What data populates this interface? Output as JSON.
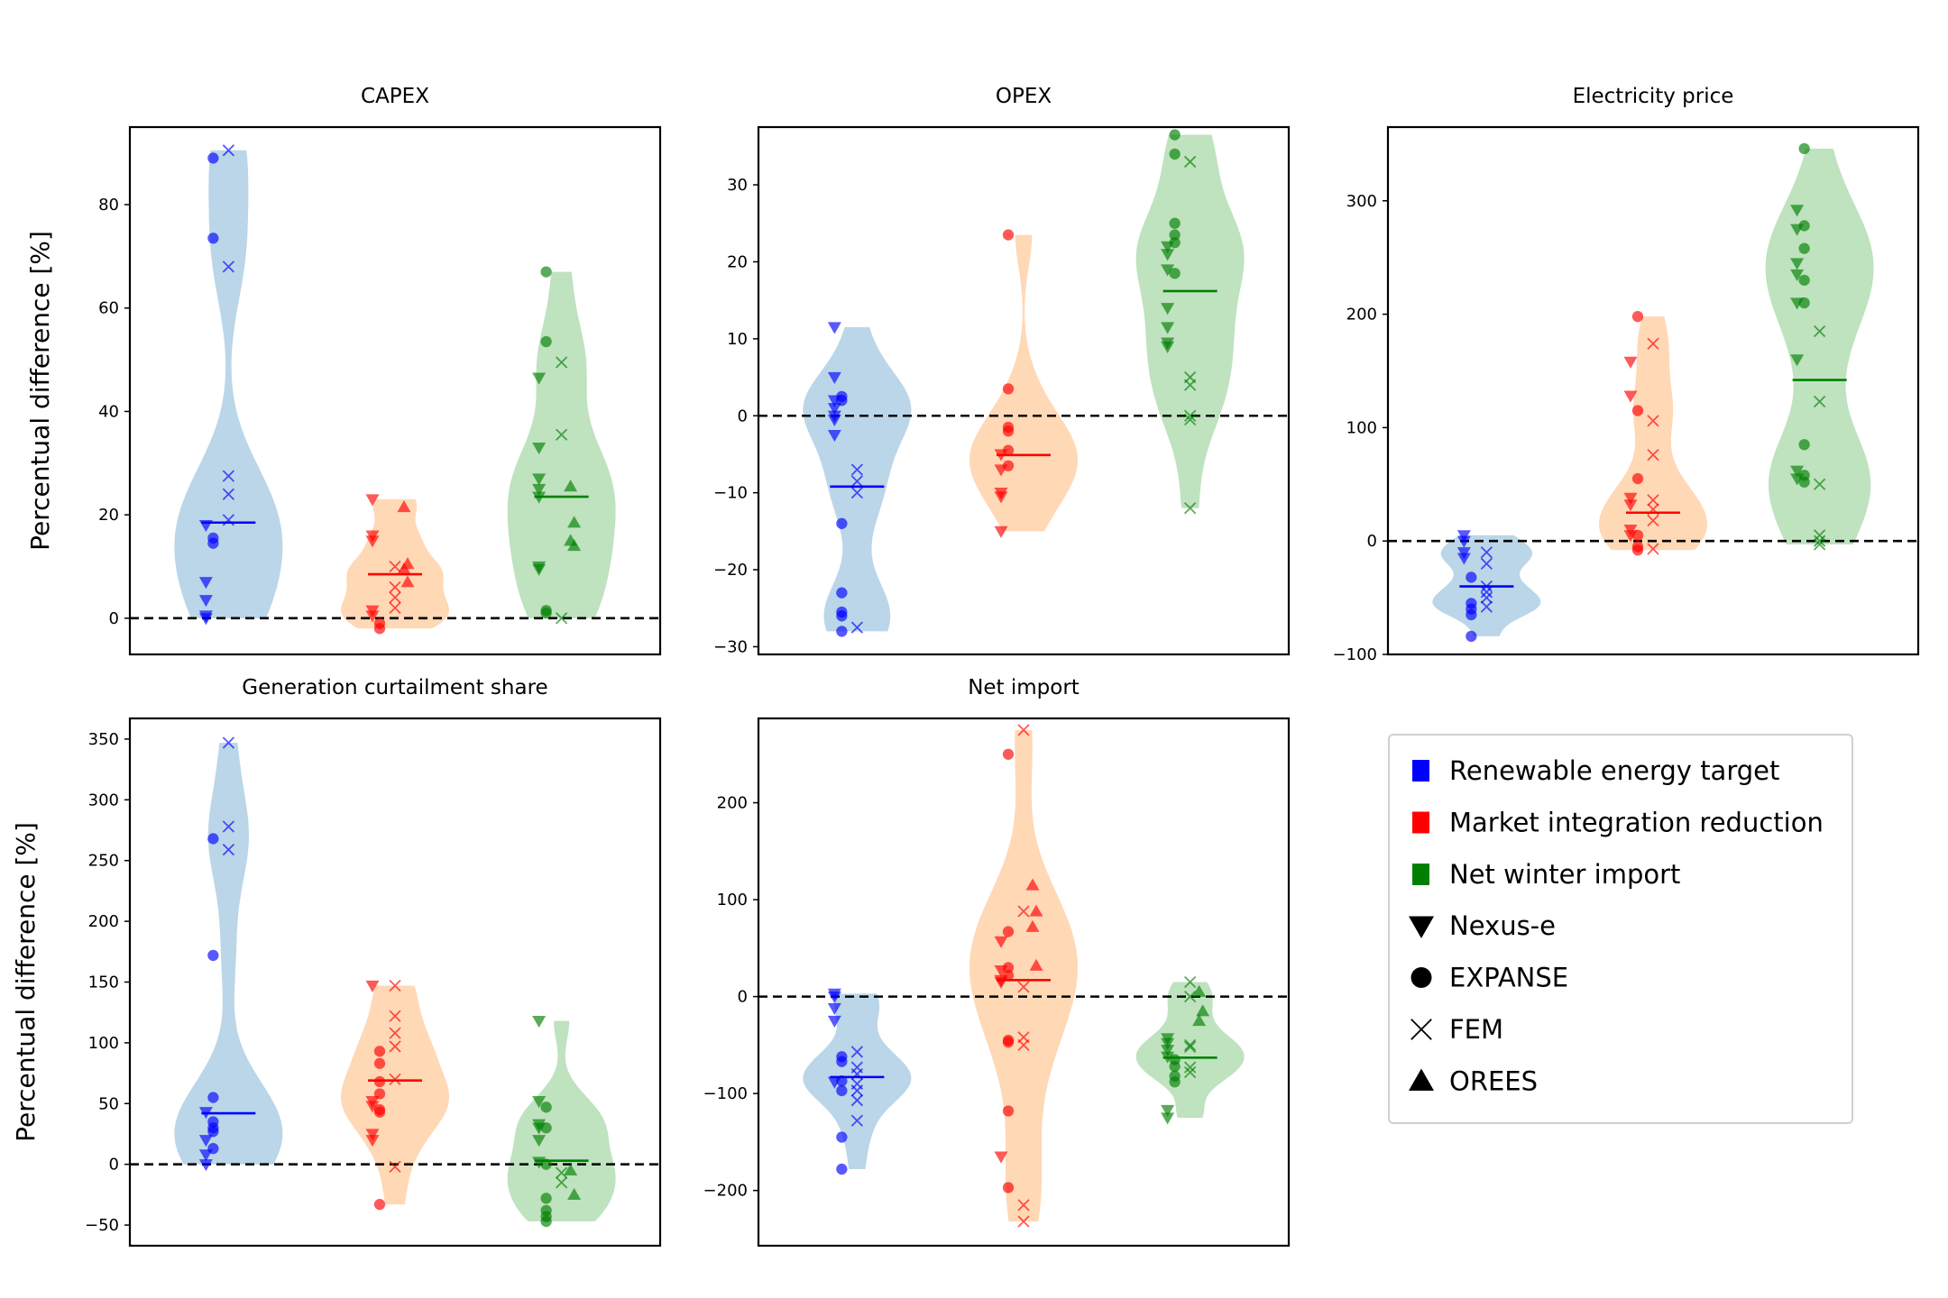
{
  "figure": {
    "ylabel": "Percentual difference [%]",
    "groups": [
      {
        "key": "ret",
        "name": "Renewable energy target",
        "color": "#0000ff",
        "fill": "#1f77b4"
      },
      {
        "key": "mir",
        "name": "Market integration reduction",
        "color": "#ff0000",
        "fill": "#ff7f0e"
      },
      {
        "key": "nwi",
        "name": "Net winter import",
        "color": "#008000",
        "fill": "#2ca02c"
      }
    ],
    "models": [
      {
        "key": "nexus",
        "name": "Nexus-e",
        "marker": "triangle-down"
      },
      {
        "key": "expanse",
        "name": "EXPANSE",
        "marker": "circle"
      },
      {
        "key": "fem",
        "name": "FEM",
        "marker": "x"
      },
      {
        "key": "orees",
        "name": "OREES",
        "marker": "triangle-up"
      }
    ]
  },
  "chart_data": [
    {
      "type": "violin",
      "title": "CAPEX",
      "ylim": [
        -7,
        95
      ],
      "yticks": [
        0,
        20,
        40,
        60,
        80
      ],
      "ylabel": "Percentual difference [%]",
      "series": [
        {
          "name": "Renewable energy target",
          "median": 18.5,
          "points": {
            "nexus": [
              18,
              7,
              3.5,
              0.5,
              0
            ],
            "expanse": [
              89,
              73.5,
              15.5,
              14.5
            ],
            "fem": [
              90.5,
              68,
              27.5,
              24,
              19
            ],
            "orees": []
          }
        },
        {
          "name": "Market integration reduction",
          "median": 8.5,
          "points": {
            "nexus": [
              23,
              16,
              15,
              1.5,
              0.5
            ],
            "expanse": [
              -1,
              -2
            ],
            "fem": [
              10,
              6,
              4,
              2
            ],
            "orees": [
              21.5,
              10.5,
              9.5,
              7
            ]
          }
        },
        {
          "name": "Net winter import",
          "median": 23.5,
          "points": {
            "nexus": [
              46.5,
              33,
              27,
              25,
              23.5,
              10,
              9.5
            ],
            "expanse": [
              67,
              53.5,
              1.5,
              1
            ],
            "fem": [
              49.5,
              35.5,
              0
            ],
            "orees": [
              25.5,
              18.5,
              15,
              14
            ]
          }
        }
      ]
    },
    {
      "type": "violin",
      "title": "OPEX",
      "ylim": [
        -31,
        37.5
      ],
      "yticks": [
        -30,
        -20,
        -10,
        0,
        10,
        20,
        30
      ],
      "series": [
        {
          "name": "Renewable energy target",
          "median": -9.2,
          "points": {
            "nexus": [
              11.5,
              5,
              2,
              1,
              0,
              -0.5,
              -2.5
            ],
            "expanse": [
              2.5,
              2,
              -14,
              -23,
              -25.5,
              -26,
              -28
            ],
            "fem": [
              -7,
              -8.5,
              -10,
              -27.5
            ],
            "orees": []
          }
        },
        {
          "name": "Market integration reduction",
          "median": -5.1,
          "points": {
            "nexus": [
              -5,
              -7,
              -10,
              -10.5,
              -15
            ],
            "expanse": [
              23.5,
              3.5,
              -1.5,
              -2,
              -4.5,
              -6.5
            ],
            "fem": [],
            "orees": []
          }
        },
        {
          "name": "Net winter import",
          "median": 16.2,
          "points": {
            "nexus": [
              22,
              21,
              19,
              14,
              11.5,
              9.5,
              9
            ],
            "expanse": [
              36.5,
              34,
              25,
              23.5,
              22.5,
              18.5
            ],
            "fem": [
              33,
              5,
              4,
              0,
              -0.5,
              -12
            ],
            "orees": []
          }
        }
      ]
    },
    {
      "type": "violin",
      "title": "Electricity price",
      "ylim": [
        -100,
        365
      ],
      "yticks": [
        -100,
        0,
        100,
        200,
        300
      ],
      "series": [
        {
          "name": "Renewable energy target",
          "median": -40,
          "points": {
            "nexus": [
              5,
              0,
              -10,
              -15
            ],
            "expanse": [
              -32,
              -55,
              -60,
              -65,
              -84
            ],
            "fem": [
              -10,
              -20,
              -40,
              -45,
              -50,
              -58
            ],
            "orees": []
          }
        },
        {
          "name": "Market integration reduction",
          "median": 25,
          "points": {
            "nexus": [
              158,
              128,
              38,
              32,
              10,
              5
            ],
            "expanse": [
              198,
              115,
              55,
              5,
              -5,
              -8
            ],
            "fem": [
              174,
              106,
              76,
              36,
              28,
              18,
              -7
            ],
            "orees": []
          }
        },
        {
          "name": "Net winter import",
          "median": 142,
          "points": {
            "nexus": [
              292,
              275,
              245,
              235,
              210,
              160,
              62,
              55
            ],
            "expanse": [
              346,
              278,
              258,
              230,
              210,
              85,
              58,
              52
            ],
            "fem": [
              185,
              123,
              50,
              5,
              0,
              -3
            ],
            "orees": []
          }
        }
      ]
    },
    {
      "type": "violin",
      "title": "Generation curtailment share",
      "ylim": [
        -67,
        367
      ],
      "yticks": [
        -50,
        0,
        50,
        100,
        150,
        200,
        250,
        300,
        350
      ],
      "ylabel": "Percentual difference [%]",
      "series": [
        {
          "name": "Renewable energy target",
          "median": 42,
          "points": {
            "nexus": [
              43,
              20,
              8,
              0
            ],
            "expanse": [
              268,
              172,
              55,
              35,
              30,
              27,
              13
            ],
            "fem": [
              347,
              278,
              259
            ],
            "orees": []
          }
        },
        {
          "name": "Market integration reduction",
          "median": 69,
          "points": {
            "nexus": [
              147,
              52,
              48,
              25,
              20
            ],
            "expanse": [
              93,
              83,
              68,
              58,
              45,
              43,
              -33
            ],
            "fem": [
              147,
              122,
              108,
              97,
              70,
              -2
            ],
            "orees": []
          }
        },
        {
          "name": "Net winter import",
          "median": 3,
          "points": {
            "nexus": [
              118,
              52,
              33,
              30,
              20,
              2
            ],
            "expanse": [
              47,
              30,
              0,
              -28,
              -38,
              -43,
              -47
            ],
            "fem": [
              -7,
              -15
            ],
            "orees": [
              -5,
              -25
            ]
          }
        }
      ]
    },
    {
      "type": "violin",
      "title": "Net import",
      "ylim": [
        -257,
        287
      ],
      "yticks": [
        -200,
        -100,
        0,
        100,
        200
      ],
      "series": [
        {
          "name": "Renewable energy target",
          "median": -83,
          "points": {
            "nexus": [
              3,
              0,
              -12,
              -25,
              -88
            ],
            "expanse": [
              -62,
              -67,
              -87,
              -97,
              -145,
              -178
            ],
            "fem": [
              -57,
              -73,
              -80,
              -90,
              -97,
              -107,
              -128
            ],
            "orees": []
          }
        },
        {
          "name": "Market integration reduction",
          "median": 17,
          "points": {
            "nexus": [
              57,
              27,
              17,
              15,
              -165
            ],
            "expanse": [
              250,
              67,
              30,
              22,
              -45,
              -47,
              -118,
              -197
            ],
            "fem": [
              275,
              88,
              10,
              -42,
              -50,
              -215,
              -232
            ],
            "orees": [
              115,
              88,
              72,
              32
            ]
          }
        },
        {
          "name": "Net winter import",
          "median": -63,
          "points": {
            "nexus": [
              -43,
              -48,
              -55,
              -62,
              -117,
              -125
            ],
            "expanse": [
              -65,
              -72,
              -82,
              -88
            ],
            "fem": [
              15,
              0,
              -50,
              -52,
              -73,
              -78
            ],
            "orees": [
              5,
              -15,
              -25
            ]
          }
        }
      ]
    }
  ]
}
